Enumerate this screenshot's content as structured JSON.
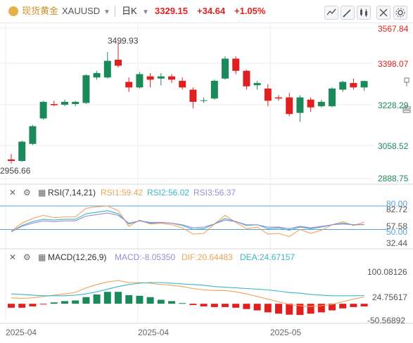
{
  "header": {
    "symbol_name": "现货黄金",
    "symbol_code": "XAUUSD",
    "period": "日K",
    "last_price": "3329.15",
    "change": "+34.64",
    "change_pct": "+1.05%"
  },
  "colors": {
    "up": "#1b8a5a",
    "down": "#e02020",
    "accent_gold": "#e8b04a",
    "rsi1": "#f0a35a",
    "rsi2": "#3bb6c8",
    "rsi3": "#9e8ad4",
    "dif": "#f0a35a",
    "dea": "#3bb6c8",
    "level_line": "#5aa0e0"
  },
  "main_axis": {
    "labels": [
      "3567.84",
      "3398.07",
      "3228.29",
      "3058.52",
      "2888.75"
    ],
    "label_colors": [
      "#e02020",
      "#e02020",
      "#1b8a5a",
      "#1b8a5a",
      "#1b8a5a"
    ]
  },
  "annotations": {
    "high": "3499.93",
    "low": "2956.66"
  },
  "rsi": {
    "title": "RSI(7,14,21)",
    "rsi1_label": "RSI1:59.42",
    "rsi2_label": "RSI2:56.02",
    "rsi3_label": "RSI3:56.37",
    "axis_labels": [
      "80.00",
      "82.72",
      "57.58",
      "50.00",
      "32.44"
    ]
  },
  "macd": {
    "title": "MACD(12,26,9)",
    "macd_label": "MACD:-8.05350",
    "dif_label": "DIF:20.64483",
    "dea_label": "DEA:24.67157",
    "axis_labels": [
      "100.08126",
      "24.75617",
      "-50.56892"
    ]
  },
  "x_axis": {
    "labels": [
      "2025-04",
      "2025-04",
      "2025-05"
    ]
  },
  "chart_data": [
    {
      "type": "candlestick",
      "title": "",
      "ylim": [
        2888.75,
        3567.84
      ],
      "candles": [
        {
          "o": 2975,
          "h": 3000,
          "l": 2956.66,
          "c": 2968
        },
        {
          "o": 2968,
          "h": 3060,
          "l": 2965,
          "c": 3055
        },
        {
          "o": 3045,
          "h": 3130,
          "l": 3040,
          "c": 3125
        },
        {
          "o": 3160,
          "h": 3240,
          "l": 3155,
          "c": 3235
        },
        {
          "o": 3225,
          "h": 3240,
          "l": 3215,
          "c": 3220
        },
        {
          "o": 3222,
          "h": 3245,
          "l": 3215,
          "c": 3235
        },
        {
          "o": 3225,
          "h": 3240,
          "l": 3215,
          "c": 3235
        },
        {
          "o": 3230,
          "h": 3360,
          "l": 3225,
          "c": 3355
        },
        {
          "o": 3345,
          "h": 3375,
          "l": 3335,
          "c": 3365
        },
        {
          "o": 3345,
          "h": 3460,
          "l": 3340,
          "c": 3420
        },
        {
          "o": 3425,
          "h": 3499.93,
          "l": 3390,
          "c": 3398
        },
        {
          "o": 3325,
          "h": 3345,
          "l": 3280,
          "c": 3300
        },
        {
          "o": 3300,
          "h": 3370,
          "l": 3295,
          "c": 3360
        },
        {
          "o": 3350,
          "h": 3365,
          "l": 3300,
          "c": 3335
        },
        {
          "o": 3340,
          "h": 3365,
          "l": 3310,
          "c": 3350
        },
        {
          "o": 3350,
          "h": 3360,
          "l": 3320,
          "c": 3335
        },
        {
          "o": 3330,
          "h": 3345,
          "l": 3290,
          "c": 3300
        },
        {
          "o": 3290,
          "h": 3300,
          "l": 3205,
          "c": 3235
        },
        {
          "o": 3240,
          "h": 3255,
          "l": 3230,
          "c": 3242
        },
        {
          "o": 3250,
          "h": 3335,
          "l": 3245,
          "c": 3330
        },
        {
          "o": 3340,
          "h": 3440,
          "l": 3335,
          "c": 3430
        },
        {
          "o": 3430,
          "h": 3440,
          "l": 3360,
          "c": 3375
        },
        {
          "o": 3375,
          "h": 3380,
          "l": 3290,
          "c": 3305
        },
        {
          "o": 3310,
          "h": 3330,
          "l": 3290,
          "c": 3320
        },
        {
          "o": 3295,
          "h": 3315,
          "l": 3215,
          "c": 3240
        },
        {
          "o": 3255,
          "h": 3265,
          "l": 3240,
          "c": 3250
        },
        {
          "o": 3255,
          "h": 3275,
          "l": 3170,
          "c": 3180
        },
        {
          "o": 3185,
          "h": 3265,
          "l": 3145,
          "c": 3255
        },
        {
          "o": 3245,
          "h": 3255,
          "l": 3190,
          "c": 3210
        },
        {
          "o": 3215,
          "h": 3245,
          "l": 3210,
          "c": 3235
        },
        {
          "o": 3215,
          "h": 3300,
          "l": 3210,
          "c": 3295
        },
        {
          "o": 3290,
          "h": 3330,
          "l": 3280,
          "c": 3325
        },
        {
          "o": 3320,
          "h": 3340,
          "l": 3290,
          "c": 3300
        },
        {
          "o": 3300,
          "h": 3330,
          "l": 3285,
          "c": 3329.15
        }
      ]
    },
    {
      "type": "line",
      "title": "RSI(7,14,21)",
      "ylim": [
        32.44,
        82.72
      ],
      "series": [
        {
          "name": "RSI1",
          "values": [
            48,
            58,
            64,
            68,
            65,
            66,
            66,
            77,
            79,
            80,
            74,
            54,
            62,
            57,
            58,
            56,
            52,
            44,
            45,
            57,
            68,
            59,
            51,
            53,
            44,
            45,
            41,
            50,
            45,
            49,
            56,
            60,
            55,
            59.42
          ]
        },
        {
          "name": "RSI2",
          "values": [
            47,
            55,
            60,
            63,
            62,
            63,
            63,
            70,
            72,
            74,
            70,
            57,
            61,
            58,
            59,
            58,
            55,
            50,
            51,
            57,
            64,
            60,
            55,
            56,
            51,
            52,
            49,
            53,
            51,
            53,
            56,
            58,
            56,
            56.02
          ]
        },
        {
          "name": "RSI3",
          "values": [
            47,
            54,
            58,
            61,
            60,
            61,
            61,
            67,
            69,
            71,
            68,
            58,
            61,
            59,
            59,
            58,
            56,
            52,
            53,
            57,
            62,
            60,
            56,
            56,
            53,
            53,
            51,
            54,
            52,
            54,
            56,
            57,
            56,
            56.37
          ]
        }
      ]
    },
    {
      "type": "bar+line",
      "title": "MACD(12,26,9)",
      "ylim": [
        -50.56892,
        100.08126
      ],
      "macd_hist": [
        -12,
        -12,
        -8,
        -2,
        4,
        8,
        10,
        20,
        28,
        36,
        36,
        26,
        24,
        20,
        12,
        8,
        2,
        -4,
        -8,
        -10,
        -10,
        -12,
        -16,
        -20,
        -26,
        -30,
        -33,
        -34,
        -30,
        -26,
        -20,
        -14,
        -10,
        -8.05
      ],
      "series": [
        {
          "name": "DIF",
          "values": [
            18,
            16,
            18,
            22,
            26,
            30,
            34,
            48,
            58,
            66,
            70,
            64,
            64,
            62,
            58,
            56,
            52,
            46,
            42,
            40,
            40,
            36,
            30,
            22,
            14,
            6,
            -2,
            -6,
            -8,
            -6,
            -2,
            6,
            14,
            20.64
          ]
        },
        {
          "name": "DEA",
          "values": [
            30,
            28,
            26,
            24,
            24,
            24,
            26,
            30,
            36,
            44,
            52,
            58,
            62,
            64,
            64,
            62,
            60,
            58,
            56,
            52,
            50,
            48,
            46,
            44,
            42,
            38,
            34,
            32,
            28,
            26,
            24,
            24,
            24,
            24.67
          ]
        }
      ]
    }
  ]
}
